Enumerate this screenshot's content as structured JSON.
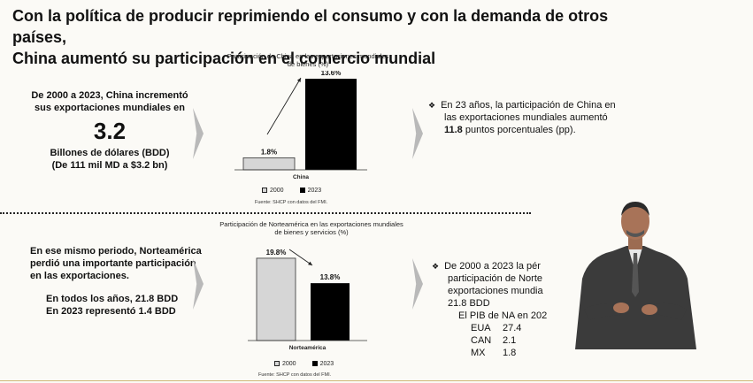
{
  "headline": {
    "line1": "Con la política de producir reprimiendo el consumo y con la demanda de otros países,",
    "line2": "China aumentó  su participación en el comercio mundial"
  },
  "top": {
    "left_text": {
      "line1": "De 2000 a 2023, China incrementó",
      "line2": "sus exportaciones mundiales en",
      "big_number": "3.2",
      "unit_line1": "Billones de dólares (BDD)",
      "unit_line2": "(De 111 mil MD a $3.2 bn)"
    },
    "chart_title_line1": "Participación de China en las exportaciones mundiales",
    "chart_title_line2": "de bienes (%)",
    "category_label": "China",
    "legend_2000": "2000",
    "legend_2023": "2023",
    "source": "Fuente: SHCP con datos del FMI.",
    "right_text": {
      "line1": "En 23 años, la participación de China en",
      "line2": "las exportaciones mundiales aumentó",
      "line3_bold": "11.8",
      "line3_rest": "puntos porcentuales (pp)."
    }
  },
  "bottom": {
    "left_text": {
      "line1": "En ese mismo periodo, Norteamérica",
      "line2": "perdió una importante participación",
      "line3": "en las exportaciones.",
      "line4": "En todos los años, 21.8 BDD",
      "line5": "En 2023 representó 1.4 BDD"
    },
    "chart_title_line1": "Participación de Norteamérica en las exportaciones mundiales",
    "chart_title_line2": "de bienes y servicios (%)",
    "category_label": "Norteamérica",
    "legend_2000": "2000",
    "legend_2023": "2023",
    "source": "Fuente: SHCP con datos del FMI.",
    "right_text": {
      "line1": "De 2000 a 2023 la pér",
      "line2": "participación de Norte",
      "line3": "exportaciones mundia",
      "line4": "21.8 BDD",
      "line5": "El PIB de NA en 202",
      "rows": [
        {
          "label": "EUA",
          "value": "27.4"
        },
        {
          "label": "CAN",
          "value": "2.1"
        },
        {
          "label": "MX",
          "value": "1.8"
        }
      ]
    }
  },
  "chart_data": [
    {
      "type": "bar",
      "title": "Participación de China en las exportaciones mundiales de bienes (%)",
      "categories": [
        "China"
      ],
      "series": [
        {
          "name": "2000",
          "values": [
            1.8
          ],
          "label": "1.8%"
        },
        {
          "name": "2023",
          "values": [
            13.6
          ],
          "label": "13.6%"
        }
      ],
      "ylim": [
        0,
        14
      ]
    },
    {
      "type": "bar",
      "title": "Participación de Norteamérica en las exportaciones mundiales de bienes y servicios (%)",
      "categories": [
        "Norteamérica"
      ],
      "series": [
        {
          "name": "2000",
          "values": [
            19.8
          ],
          "label": "19.8%"
        },
        {
          "name": "2023",
          "values": [
            13.8
          ],
          "label": "13.8%"
        }
      ],
      "ylim": [
        0,
        20
      ]
    }
  ],
  "colors": {
    "bar_2000": "#d6d6d6",
    "bar_2023": "#000000",
    "chevron": "#b9b9b9",
    "background": "#fbfaf6"
  },
  "icons": {
    "bullet": "diamond-bullet-icon",
    "arrow": "trend-arrow-icon",
    "chevron": "chevron-right-icon"
  }
}
